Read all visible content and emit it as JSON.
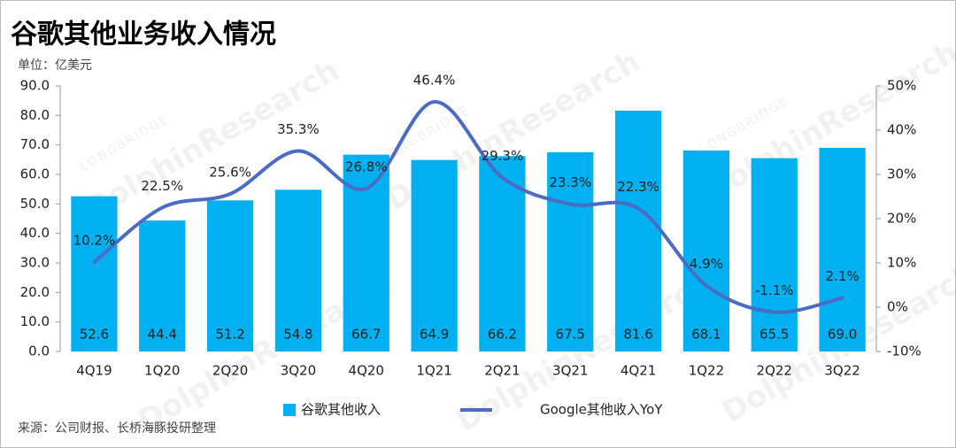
{
  "chart_data": {
    "type": "bar_line",
    "title": "谷歌其他业务收入情况",
    "unit_label": "单位：亿美元",
    "source": "来源：公司财报、长桥海豚投研整理",
    "watermark": "DolphinResearch",
    "watermark_brand": "LONGBRIDGE",
    "categories": [
      "4Q19",
      "1Q20",
      "2Q20",
      "3Q20",
      "4Q20",
      "1Q21",
      "2Q21",
      "3Q21",
      "4Q21",
      "1Q22",
      "2Q22",
      "3Q22"
    ],
    "series": [
      {
        "name": "谷歌其他收入",
        "type": "bar",
        "color": "#00b0f0",
        "values": [
          52.6,
          44.4,
          51.2,
          54.8,
          66.7,
          64.9,
          66.2,
          67.5,
          81.6,
          68.1,
          65.5,
          69.0
        ],
        "value_labels": [
          "52.6",
          "44.4",
          "51.2",
          "54.8",
          "66.7",
          "64.9",
          "66.2",
          "67.5",
          "81.6",
          "68.1",
          "65.5",
          "69.0"
        ]
      },
      {
        "name": "Google其他收入YoY",
        "type": "line",
        "axis": "y2",
        "color": "#4a6cc4",
        "values": [
          10.2,
          22.5,
          25.6,
          35.3,
          26.8,
          46.4,
          29.3,
          23.3,
          22.3,
          4.9,
          -1.1,
          2.1
        ],
        "value_labels": [
          "10.2%",
          "22.5%",
          "25.6%",
          "35.3%",
          "26.8%",
          "46.4%",
          "29.3%",
          "23.3%",
          "22.3%",
          "4.9%",
          "-1.1%",
          "2.1%"
        ]
      }
    ],
    "ylim": [
      0,
      90
    ],
    "yticks": [
      {
        "value": 0,
        "label": "0.0"
      },
      {
        "value": 10,
        "label": "10.0"
      },
      {
        "value": 20,
        "label": "20.0"
      },
      {
        "value": 30,
        "label": "30.0"
      },
      {
        "value": 40,
        "label": "40.0"
      },
      {
        "value": 50,
        "label": "50.0"
      },
      {
        "value": 60,
        "label": "60.0"
      },
      {
        "value": 70,
        "label": "70.0"
      },
      {
        "value": 80,
        "label": "80.0"
      },
      {
        "value": 90,
        "label": "90.0"
      }
    ],
    "y2lim": [
      -10,
      50
    ],
    "y2ticks": [
      {
        "value": -10,
        "label": "-10%"
      },
      {
        "value": 0,
        "label": "0%"
      },
      {
        "value": 10,
        "label": "10%"
      },
      {
        "value": 20,
        "label": "20%"
      },
      {
        "value": 30,
        "label": "30%"
      },
      {
        "value": 40,
        "label": "40%"
      },
      {
        "value": 50,
        "label": "50%"
      }
    ],
    "legend": "bottom"
  }
}
